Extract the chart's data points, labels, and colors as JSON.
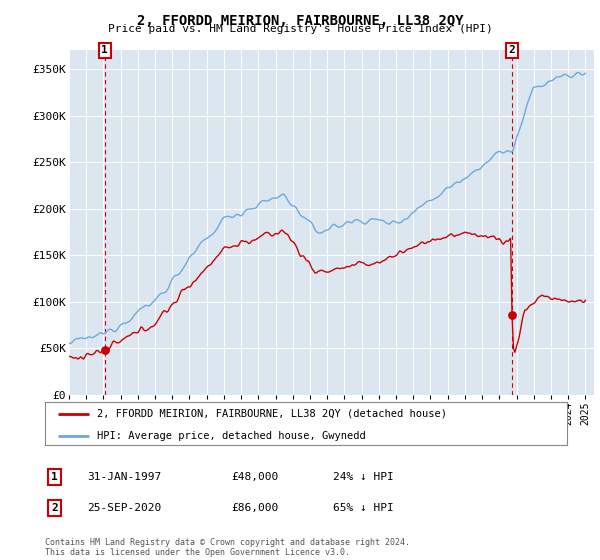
{
  "title": "2, FFORDD MEIRION, FAIRBOURNE, LL38 2QY",
  "subtitle": "Price paid vs. HM Land Registry's House Price Index (HPI)",
  "ylim": [
    0,
    370000
  ],
  "yticks": [
    0,
    50000,
    100000,
    150000,
    200000,
    250000,
    300000,
    350000
  ],
  "ytick_labels": [
    "£0",
    "£50K",
    "£100K",
    "£150K",
    "£200K",
    "£250K",
    "£300K",
    "£350K"
  ],
  "x_start_year": 1995,
  "x_end_year": 2025,
  "sale1_date": 1997.08,
  "sale1_price": 48000,
  "sale2_date": 2020.73,
  "sale2_price": 86000,
  "hpi_color": "#6fa8dc",
  "price_color": "#cc0000",
  "plot_bg_color": "#dce6f1",
  "legend_label1": "2, FFORDD MEIRION, FAIRBOURNE, LL38 2QY (detached house)",
  "legend_label2": "HPI: Average price, detached house, Gwynedd",
  "sale1_text": "31-JAN-1997",
  "sale1_amount": "£48,000",
  "sale1_hpi": "24% ↓ HPI",
  "sale2_text": "25-SEP-2020",
  "sale2_amount": "£86,000",
  "sale2_hpi": "65% ↓ HPI",
  "footer": "Contains HM Land Registry data © Crown copyright and database right 2024.\nThis data is licensed under the Open Government Licence v3.0."
}
